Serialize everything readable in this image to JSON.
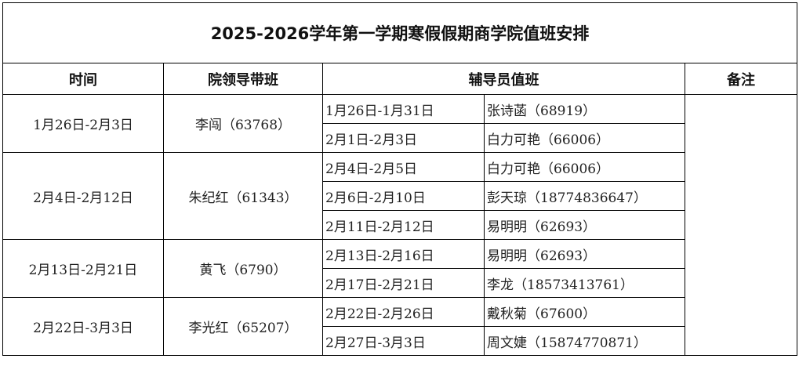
{
  "title": "2025-2026学年第一学期寒假假期商学院值班安排",
  "headers": {
    "time": "时间",
    "leader": "院领导带班",
    "counselor": "辅导员值班",
    "notes": "备注"
  },
  "groups": [
    {
      "time": "1月26日-2月3日",
      "leader": "李闯（63768）",
      "shifts": [
        {
          "date": "1月26日-1月31日",
          "person": "张诗菡（68919）"
        },
        {
          "date": "2月1日-2月3日",
          "person": "白力可艳（66006）"
        }
      ]
    },
    {
      "time": "2月4日-2月12日",
      "leader": "朱纪红（61343）",
      "shifts": [
        {
          "date": "2月4日-2月5日",
          "person": "白力可艳（66006）"
        },
        {
          "date": "2月6日-2月10日",
          "person": "彭天琼（18774836647）"
        },
        {
          "date": "2月11日-2月12日",
          "person": "易明明（62693）"
        }
      ]
    },
    {
      "time": "2月13日-2月21日",
      "leader": "黄飞（6790）",
      "shifts": [
        {
          "date": "2月13日-2月16日",
          "person": "易明明（62693）"
        },
        {
          "date": "2月17日-2月21日",
          "person": "李龙（18573413761）"
        }
      ]
    },
    {
      "time": "2月22日-3月3日",
      "leader": "李光红（65207）",
      "shifts": [
        {
          "date": "2月22日-2月26日",
          "person": "戴秋菊（67600）"
        },
        {
          "date": "2月27日-3月3日",
          "person": "周文婕（15874770871）"
        }
      ]
    }
  ]
}
